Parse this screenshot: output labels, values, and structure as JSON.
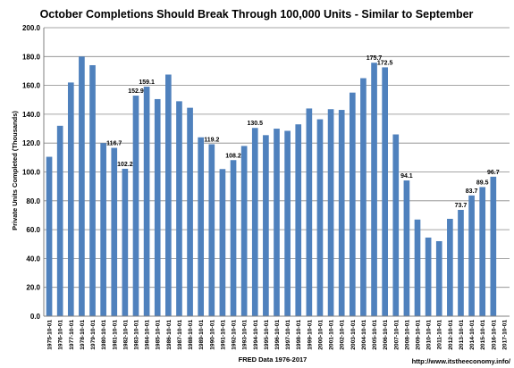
{
  "chart_data": {
    "type": "bar",
    "title": "October Completions Should Break Through 100,000 Units - Similar to September",
    "xlabel": "FRED Data 1976-2017",
    "ylabel": "Private Units Completed (Thousands)",
    "source_note": "http://www.itstheeconomy.info/",
    "ylim": [
      0,
      200
    ],
    "yticks": [
      "0.0",
      "20.0",
      "40.0",
      "60.0",
      "80.0",
      "100.0",
      "120.0",
      "140.0",
      "160.0",
      "180.0",
      "200.0"
    ],
    "grid": true,
    "bar_color": "#4f81bd",
    "categories": [
      "1975-10-01",
      "1976-10-01",
      "1977-10-01",
      "1978-10-01",
      "1979-10-01",
      "1980-10-01",
      "1981-10-01",
      "1982-10-01",
      "1983-10-01",
      "1984-10-01",
      "1985-10-01",
      "1986-10-01",
      "1987-10-01",
      "1988-10-01",
      "1989-10-01",
      "1990-10-01",
      "1991-10-01",
      "1992-10-01",
      "1993-10-01",
      "1994-10-01",
      "1995-10-01",
      "1996-10-01",
      "1997-10-01",
      "1998-10-01",
      "1999-10-01",
      "2000-10-01",
      "2001-10-01",
      "2002-10-01",
      "2003-10-01",
      "2004-10-01",
      "2005-10-01",
      "2006-10-01",
      "2007-10-01",
      "2008-10-01",
      "2009-10-01",
      "2010-10-01",
      "2011-10-01",
      "2012-10-01",
      "2013-10-01",
      "2014-10-01",
      "2015-10-01",
      "2016-10-01",
      "2017-10-01"
    ],
    "values": [
      110.5,
      132,
      162,
      180,
      174,
      120,
      116.7,
      102.2,
      152.9,
      159.1,
      150.5,
      167.5,
      149,
      144.5,
      124,
      119.2,
      102,
      108.2,
      118,
      130.5,
      125.5,
      130,
      128.5,
      133,
      144,
      136.5,
      143.5,
      143,
      155,
      165,
      175.7,
      172.5,
      126,
      94.1,
      67,
      54.5,
      52,
      67.5,
      73.7,
      83.7,
      89.5,
      96.7,
      null
    ],
    "data_labels": [
      {
        "index": 6,
        "text": "116.7"
      },
      {
        "index": 7,
        "text": "102.2"
      },
      {
        "index": 8,
        "text": "152.9"
      },
      {
        "index": 9,
        "text": "159.1"
      },
      {
        "index": 15,
        "text": "119.2"
      },
      {
        "index": 17,
        "text": "108.2"
      },
      {
        "index": 19,
        "text": "130.5"
      },
      {
        "index": 30,
        "text": "175.7"
      },
      {
        "index": 31,
        "text": "172.5"
      },
      {
        "index": 33,
        "text": "94.1"
      },
      {
        "index": 38,
        "text": "73.7"
      },
      {
        "index": 39,
        "text": "83.7"
      },
      {
        "index": 40,
        "text": "89.5"
      },
      {
        "index": 41,
        "text": "96.7"
      }
    ]
  }
}
